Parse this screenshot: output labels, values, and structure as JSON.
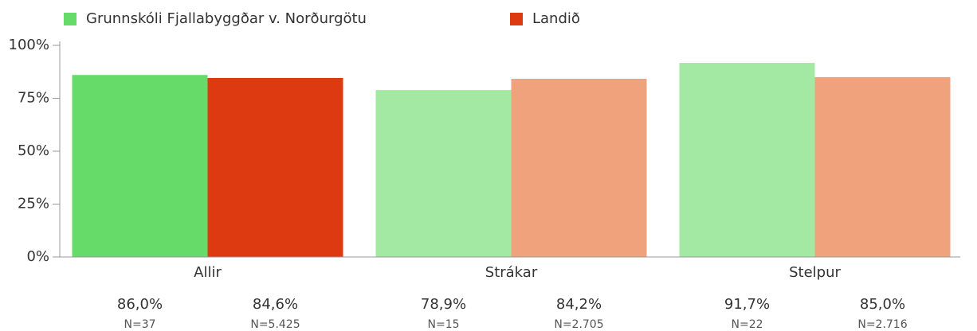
{
  "chart_data": {
    "type": "bar",
    "categories": [
      "Allir",
      "Strákar",
      "Stelpur"
    ],
    "series": [
      {
        "name": "Grunnskóli Fjallabyggðar v. Norðurgötu",
        "color": "#66db6a",
        "colors": [
          "#66db6a",
          "#a3e9a4",
          "#a3e9a4"
        ],
        "values": [
          86.0,
          78.9,
          91.7
        ],
        "value_labels": [
          "86,0%",
          "78,9%",
          "91,7%"
        ],
        "n_labels": [
          "N=37",
          "N=15",
          "N=22"
        ]
      },
      {
        "name": "Landið",
        "color": "#de3a12",
        "colors": [
          "#de3a12",
          "#efa27c",
          "#efa27c"
        ],
        "values": [
          84.6,
          84.2,
          85.0
        ],
        "value_labels": [
          "84,6%",
          "84,2%",
          "85,0%"
        ],
        "n_labels": [
          "N=5.425",
          "N=2.705",
          "N=2.716"
        ]
      }
    ],
    "ylim": [
      0,
      100
    ],
    "yticks": [
      {
        "value": 0,
        "label": "0%"
      },
      {
        "value": 25,
        "label": "25%"
      },
      {
        "value": 50,
        "label": "50%"
      },
      {
        "value": 75,
        "label": "75%"
      },
      {
        "value": 100,
        "label": "100%"
      }
    ]
  }
}
